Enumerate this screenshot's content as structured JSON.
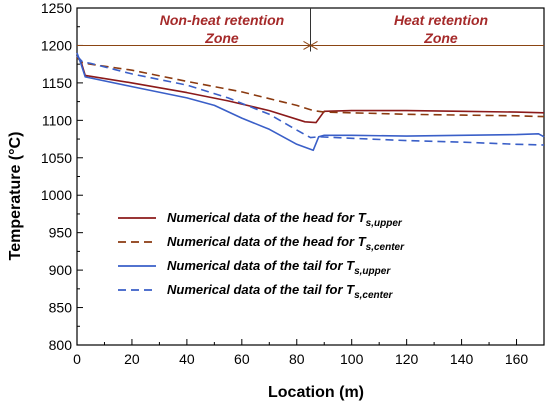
{
  "chart_data": {
    "type": "line",
    "xlabel": "Location (m)",
    "ylabel": "Temperature (°C)",
    "xlim": [
      0,
      170
    ],
    "ylim": [
      800,
      1250
    ],
    "xticks": [
      0,
      20,
      40,
      60,
      80,
      100,
      120,
      140,
      160
    ],
    "yticks": [
      800,
      850,
      900,
      950,
      1000,
      1050,
      1100,
      1150,
      1200,
      1250
    ],
    "grid": false,
    "zones": [
      {
        "line1": "Non-heat retention",
        "line2": "Zone"
      },
      {
        "line1": "Heat retention",
        "line2": "Zone"
      }
    ],
    "zone_boundary_x": 85,
    "zone_arrow_y": 1200,
    "legend": {
      "placement": "lower-left"
    },
    "series": [
      {
        "name": "Numerical data of the head for T",
        "name_sub": "s,upper",
        "color": "#8b1a1a",
        "dash": "solid",
        "x": [
          0,
          1.5,
          3,
          20,
          40,
          55,
          70,
          83,
          87,
          90,
          100,
          120,
          140,
          160,
          170
        ],
        "y": [
          1186,
          1178,
          1160,
          1150,
          1137,
          1126,
          1113,
          1098,
          1097,
          1112,
          1113,
          1113,
          1112,
          1111,
          1110
        ]
      },
      {
        "name": "Numerical data of the head for T",
        "name_sub": "s,center",
        "color": "#8b3a10",
        "dash": "dashed",
        "x": [
          0,
          2,
          5,
          20,
          40,
          60,
          80,
          86,
          90,
          100,
          120,
          140,
          160,
          170
        ],
        "y": [
          1184,
          1177,
          1175,
          1167,
          1152,
          1138,
          1120,
          1113,
          1111,
          1110,
          1108,
          1107,
          1106,
          1105
        ]
      },
      {
        "name": "Numerical data of the tail for T",
        "name_sub": "s,upper",
        "color": "#3a5fc8",
        "dash": "solid",
        "x": [
          0,
          1.5,
          3,
          20,
          40,
          50,
          60,
          70,
          80,
          86,
          88,
          90,
          100,
          120,
          140,
          160,
          168,
          170
        ],
        "y": [
          1190,
          1175,
          1158,
          1145,
          1130,
          1120,
          1103,
          1088,
          1068,
          1060,
          1078,
          1080,
          1080,
          1079,
          1080,
          1081,
          1082,
          1078
        ]
      },
      {
        "name": "Numerical data of the tail for T",
        "name_sub": "s,center",
        "color": "#3a5fc8",
        "dash": "dashed",
        "x": [
          0,
          2,
          5,
          20,
          40,
          55,
          70,
          80,
          85,
          88,
          100,
          120,
          140,
          160,
          170
        ],
        "y": [
          1186,
          1178,
          1176,
          1162,
          1147,
          1130,
          1108,
          1087,
          1077,
          1078,
          1076,
          1073,
          1071,
          1068,
          1067
        ]
      }
    ]
  }
}
